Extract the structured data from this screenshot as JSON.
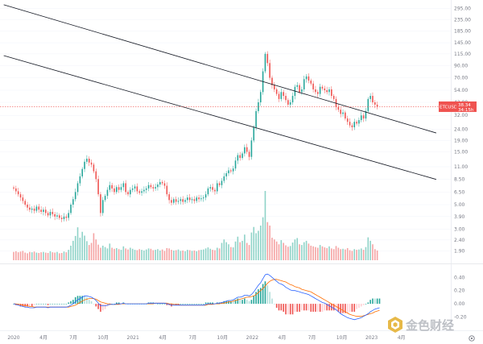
{
  "chart_data": {
    "type": "candlestick",
    "symbol": "ETCUSDT",
    "last_price": "38.34",
    "countdown": "34:15h",
    "y_scale": "log",
    "ylim": [
      1.6,
      330
    ],
    "price_ticks": [
      "295.00",
      "235.00",
      "185.00",
      "145.00",
      "115.00",
      "90.00",
      "70.00",
      "54.00",
      "42.00",
      "32.00",
      "24.00",
      "19.00",
      "15.00",
      "11.00",
      "8.50",
      "6.50",
      "5.00",
      "3.90",
      "3.00",
      "2.40",
      "1.90"
    ],
    "x_ticks": [
      "2020",
      "4月",
      "7月",
      "10月",
      "2021",
      "4月",
      "7月",
      "10月",
      "2022",
      "4月",
      "7月",
      "10月",
      "2023",
      "4月"
    ],
    "x_tick_months": [
      0,
      3,
      6,
      9,
      12,
      15,
      18,
      21,
      24,
      27,
      30,
      33,
      36,
      39
    ],
    "candles_start": "2019-11",
    "week_step": 0.23,
    "closes": [
      7.0,
      6.6,
      6.2,
      5.8,
      5.4,
      5.0,
      4.7,
      4.5,
      4.6,
      4.4,
      4.8,
      4.5,
      4.3,
      4.5,
      4.2,
      4.0,
      4.3,
      4.1,
      3.9,
      4.0,
      3.8,
      3.7,
      3.9,
      3.8,
      4.2,
      5.0,
      5.6,
      6.5,
      7.8,
      9.0,
      10.5,
      12.2,
      13.0,
      12.0,
      11.5,
      10.0,
      8.5,
      6.2,
      4.2,
      5.5,
      6.0,
      6.8,
      7.5,
      7.0,
      6.5,
      7.2,
      6.8,
      7.2,
      7.8,
      6.5,
      6.2,
      6.8,
      7.0,
      7.3,
      6.6,
      6.4,
      6.6,
      6.8,
      7.0,
      7.5,
      7.2,
      7.0,
      7.2,
      7.6,
      8.0,
      7.8,
      7.4,
      6.2,
      5.5,
      5.2,
      5.6,
      5.3,
      5.4,
      5.6,
      5.3,
      5.5,
      5.8,
      5.5,
      5.6,
      5.4,
      5.8,
      5.6,
      5.7,
      5.8,
      6.2,
      7.0,
      7.2,
      6.8,
      6.6,
      7.8,
      7.5,
      8.2,
      9.0,
      9.6,
      10.2,
      10.0,
      10.6,
      12.5,
      14.0,
      13.2,
      14.5,
      16.5,
      15.0,
      13.5,
      19.0,
      25.0,
      35.0,
      42.0,
      52.0,
      80.0,
      115.0,
      95.0,
      70.0,
      60.0,
      55.0,
      50.0,
      45.0,
      52.0,
      48.0,
      44.0,
      40.0,
      42.0,
      48.0,
      58.0,
      60.0,
      52.0,
      55.0,
      68.0,
      72.0,
      66.0,
      62.0,
      55.0,
      52.0,
      50.0,
      58.0,
      56.0,
      54.0,
      52.0,
      55.0,
      48.0,
      45.0,
      38.0,
      36.0,
      33.0,
      34.0,
      30.0,
      28.0,
      26.0,
      25.0,
      28.0,
      27.0,
      29.0,
      32.0,
      30.0,
      35.0,
      45.0,
      48.0,
      42.0,
      40.0,
      38.34
    ],
    "volumes": [
      2.4,
      2.6,
      2.3,
      2.5,
      2.7,
      2.2,
      2.0,
      2.4,
      2.3,
      2.5,
      2.2,
      2.1,
      2.3,
      2.4,
      2.2,
      2.1,
      2.6,
      2.3,
      2.2,
      2.4,
      2.0,
      2.1,
      2.5,
      2.3,
      3.0,
      4.2,
      5.6,
      7.0,
      9.5,
      6.5,
      8.2,
      7.1,
      5.5,
      4.4,
      5.0,
      7.8,
      6.0,
      4.5,
      3.6,
      4.2,
      3.8,
      3.4,
      4.8,
      3.6,
      3.3,
      3.5,
      3.2,
      3.0,
      4.0,
      3.4,
      3.1,
      3.6,
      3.3,
      3.0,
      2.9,
      3.2,
      3.0,
      2.8,
      3.1,
      3.4,
      3.3,
      2.9,
      3.0,
      3.2,
      2.8,
      3.1,
      2.7,
      3.5,
      3.4,
      3.0,
      2.8,
      2.9,
      3.1,
      2.7,
      2.8,
      2.6,
      3.0,
      2.9,
      2.7,
      2.8,
      2.6,
      2.9,
      3.0,
      3.1,
      3.4,
      3.7,
      3.3,
      3.0,
      2.9,
      3.6,
      3.4,
      5.0,
      6.0,
      5.2,
      4.6,
      3.8,
      3.7,
      5.4,
      6.8,
      5.2,
      5.6,
      7.4,
      5.0,
      4.4,
      8.0,
      9.6,
      7.8,
      8.5,
      10.0,
      12.4,
      20.0,
      11.0,
      10.0,
      6.5,
      6.0,
      5.4,
      4.6,
      5.8,
      5.0,
      4.3,
      3.9,
      4.1,
      5.1,
      6.0,
      6.4,
      4.6,
      4.4,
      5.2,
      5.6,
      4.8,
      4.2,
      4.0,
      3.8,
      3.6,
      4.4,
      4.0,
      3.7,
      3.5,
      4.0,
      3.4,
      3.2,
      4.1,
      3.6,
      3.2,
      3.3,
      3.1,
      3.5,
      2.9,
      2.7,
      3.2,
      3.0,
      3.1,
      3.4,
      3.0,
      3.8,
      6.6,
      5.6,
      4.6,
      3.2,
      2.8
    ],
    "channel_upper": [
      [
        -1.0,
        320
      ],
      [
        42.5,
        22.2
      ]
    ],
    "channel_lower": [
      [
        -1.0,
        111
      ],
      [
        42.5,
        8.45
      ]
    ],
    "current_price_line": 38.34,
    "macd": {
      "ylim": [
        -0.34,
        0.55
      ],
      "ticks": [
        "0.40",
        "0.20",
        "0.00",
        "-0.20"
      ],
      "dif": [
        0.0,
        -0.01,
        -0.02,
        -0.03,
        -0.04,
        -0.05,
        -0.05,
        -0.06,
        -0.06,
        -0.06,
        -0.05,
        -0.05,
        -0.05,
        -0.05,
        -0.05,
        -0.06,
        -0.05,
        -0.05,
        -0.05,
        -0.05,
        -0.05,
        -0.05,
        -0.05,
        -0.05,
        -0.04,
        -0.02,
        0.0,
        0.03,
        0.06,
        0.08,
        0.1,
        0.12,
        0.12,
        0.11,
        0.1,
        0.08,
        0.05,
        0.01,
        -0.03,
        -0.03,
        -0.03,
        -0.02,
        -0.01,
        -0.01,
        -0.01,
        0.0,
        0.0,
        0.0,
        0.01,
        0.0,
        0.0,
        0.0,
        0.0,
        0.0,
        0.0,
        0.0,
        0.0,
        0.0,
        0.0,
        0.01,
        0.01,
        0.01,
        0.01,
        0.01,
        0.01,
        0.01,
        0.01,
        0.0,
        -0.01,
        -0.02,
        -0.02,
        -0.02,
        -0.02,
        -0.02,
        -0.02,
        -0.02,
        -0.02,
        -0.02,
        -0.02,
        -0.02,
        -0.02,
        -0.02,
        -0.02,
        -0.02,
        -0.01,
        0.0,
        0.0,
        0.0,
        0.0,
        0.01,
        0.01,
        0.02,
        0.03,
        0.04,
        0.05,
        0.05,
        0.06,
        0.08,
        0.1,
        0.1,
        0.11,
        0.13,
        0.13,
        0.12,
        0.14,
        0.18,
        0.23,
        0.28,
        0.32,
        0.38,
        0.44,
        0.45,
        0.43,
        0.4,
        0.37,
        0.34,
        0.31,
        0.3,
        0.28,
        0.25,
        0.23,
        0.21,
        0.2,
        0.2,
        0.19,
        0.18,
        0.17,
        0.16,
        0.15,
        0.14,
        0.12,
        0.1,
        0.08,
        0.06,
        0.04,
        0.02,
        0.01,
        -0.01,
        -0.03,
        -0.05,
        -0.07,
        -0.09,
        -0.12,
        -0.15,
        -0.17,
        -0.19,
        -0.21,
        -0.22,
        -0.23,
        -0.24,
        -0.23,
        -0.22,
        -0.21,
        -0.19,
        -0.17,
        -0.15,
        -0.12,
        -0.1,
        -0.08,
        -0.07,
        -0.06
      ],
      "dea": [
        0.0,
        0.0,
        -0.01,
        -0.01,
        -0.02,
        -0.03,
        -0.03,
        -0.04,
        -0.04,
        -0.05,
        -0.05,
        -0.05,
        -0.05,
        -0.05,
        -0.05,
        -0.05,
        -0.05,
        -0.05,
        -0.05,
        -0.05,
        -0.05,
        -0.05,
        -0.05,
        -0.05,
        -0.05,
        -0.04,
        -0.03,
        -0.02,
        0.0,
        0.02,
        0.04,
        0.06,
        0.07,
        0.08,
        0.08,
        0.08,
        0.07,
        0.05,
        0.03,
        0.02,
        0.01,
        0.0,
        0.0,
        -0.01,
        -0.01,
        -0.01,
        -0.01,
        0.0,
        0.0,
        0.0,
        0.0,
        0.0,
        0.0,
        0.0,
        0.0,
        0.0,
        0.0,
        0.0,
        0.0,
        0.0,
        0.0,
        0.0,
        0.01,
        0.01,
        0.01,
        0.01,
        0.01,
        0.01,
        0.0,
        0.0,
        -0.01,
        -0.01,
        -0.01,
        -0.02,
        -0.02,
        -0.02,
        -0.02,
        -0.02,
        -0.02,
        -0.02,
        -0.02,
        -0.02,
        -0.02,
        -0.02,
        -0.02,
        -0.01,
        -0.01,
        -0.01,
        0.0,
        0.0,
        0.0,
        0.01,
        0.01,
        0.02,
        0.03,
        0.03,
        0.04,
        0.05,
        0.06,
        0.07,
        0.08,
        0.09,
        0.1,
        0.1,
        0.11,
        0.12,
        0.14,
        0.17,
        0.2,
        0.23,
        0.27,
        0.31,
        0.34,
        0.36,
        0.37,
        0.37,
        0.36,
        0.35,
        0.34,
        0.33,
        0.31,
        0.29,
        0.28,
        0.26,
        0.25,
        0.24,
        0.22,
        0.21,
        0.2,
        0.19,
        0.18,
        0.16,
        0.14,
        0.12,
        0.1,
        0.08,
        0.06,
        0.04,
        0.02,
        0.0,
        -0.02,
        -0.04,
        -0.06,
        -0.08,
        -0.1,
        -0.12,
        -0.14,
        -0.16,
        -0.17,
        -0.18,
        -0.19,
        -0.19,
        -0.19,
        -0.18,
        -0.17,
        -0.16,
        -0.15,
        -0.14,
        -0.12,
        -0.11,
        -0.1
      ]
    },
    "colors": {
      "up": "#26a69a",
      "down": "#ef5350",
      "up_volume": "#8fd3c8",
      "down_volume": "#f5a3a3",
      "channel": "#131722",
      "dif": "#2962ff",
      "dea": "#ff6d00",
      "price_tag": "#ef5350",
      "axis_text": "#787b86"
    }
  },
  "watermark": {
    "text": "金色财经",
    "logo": "jinse-logo"
  }
}
